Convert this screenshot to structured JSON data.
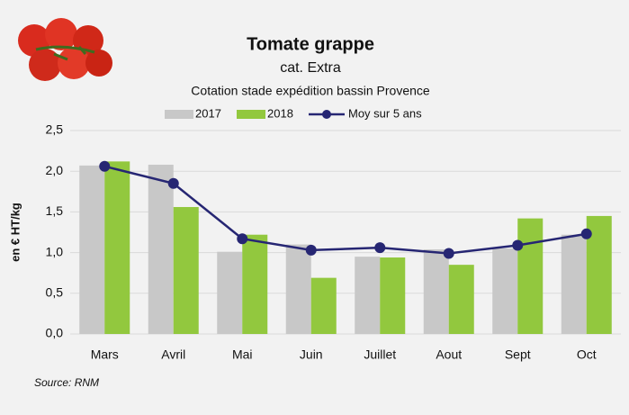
{
  "chart_data": {
    "type": "bar",
    "title": "Tomate grappe",
    "subtitle": "cat. Extra",
    "caption": "Cotation stade expédition bassin Provence",
    "y_label": "en € HT/kg",
    "source": "Source: RNM",
    "categories": [
      "Mars",
      "Avril",
      "Mai",
      "Juin",
      "Juillet",
      "Aout",
      "Sept",
      "Oct"
    ],
    "series": [
      {
        "name": "2017",
        "type": "bar",
        "color": "#c8c8c8",
        "values": [
          2.07,
          2.08,
          1.01,
          1.1,
          0.95,
          1.04,
          1.05,
          1.22
        ]
      },
      {
        "name": "2018",
        "type": "bar",
        "color": "#92c83e",
        "values": [
          2.12,
          1.56,
          1.22,
          0.69,
          0.94,
          0.85,
          1.42,
          1.45
        ]
      },
      {
        "name": "Moy sur 5 ans",
        "type": "line",
        "color": "#262673",
        "values": [
          2.06,
          1.85,
          1.17,
          1.03,
          1.06,
          0.99,
          1.09,
          1.23
        ]
      }
    ],
    "ylim": [
      0,
      2.5
    ],
    "yticks": [
      {
        "value": 0,
        "label": "0,0"
      },
      {
        "value": 0.5,
        "label": "0,5"
      },
      {
        "value": 1,
        "label": "1,0"
      },
      {
        "value": 1.5,
        "label": "1,5"
      },
      {
        "value": 2,
        "label": "2,0"
      },
      {
        "value": 2.5,
        "label": "2,5"
      }
    ],
    "grid": true,
    "legend": "top"
  }
}
